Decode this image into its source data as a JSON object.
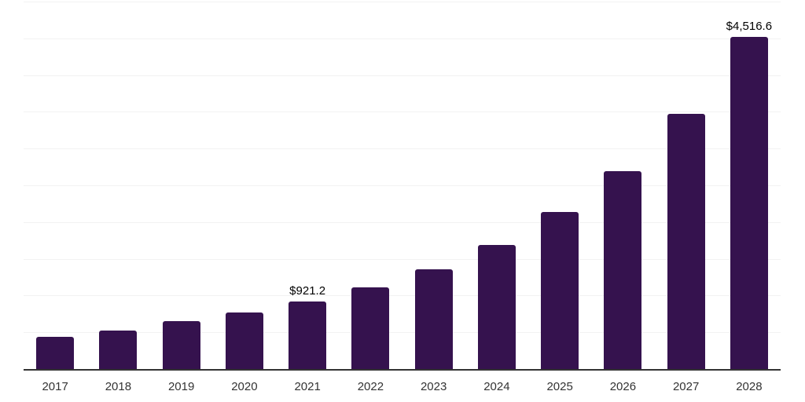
{
  "chart_data": {
    "type": "bar",
    "title": "",
    "xlabel": "",
    "ylabel": "",
    "categories": [
      "2017",
      "2018",
      "2019",
      "2020",
      "2021",
      "2022",
      "2023",
      "2024",
      "2025",
      "2026",
      "2027",
      "2028"
    ],
    "values": [
      435,
      520,
      655,
      770,
      921.2,
      1110,
      1355,
      1690,
      2135,
      2690,
      3470,
      4516.6
    ],
    "data_labels": [
      "",
      "",
      "",
      "",
      "$921.2",
      "",
      "",
      "",
      "",
      "",
      "",
      "$4,516.6"
    ],
    "ylim": [
      0,
      5000
    ],
    "gridline_step": 500,
    "grid": true,
    "legend_position": "none",
    "colors": {
      "bar": "#35124e",
      "gridline": "#f2f2f2",
      "axis": "#333333",
      "data_label": "#000000",
      "tick_label": "#333333",
      "background": "#ffffff"
    }
  }
}
